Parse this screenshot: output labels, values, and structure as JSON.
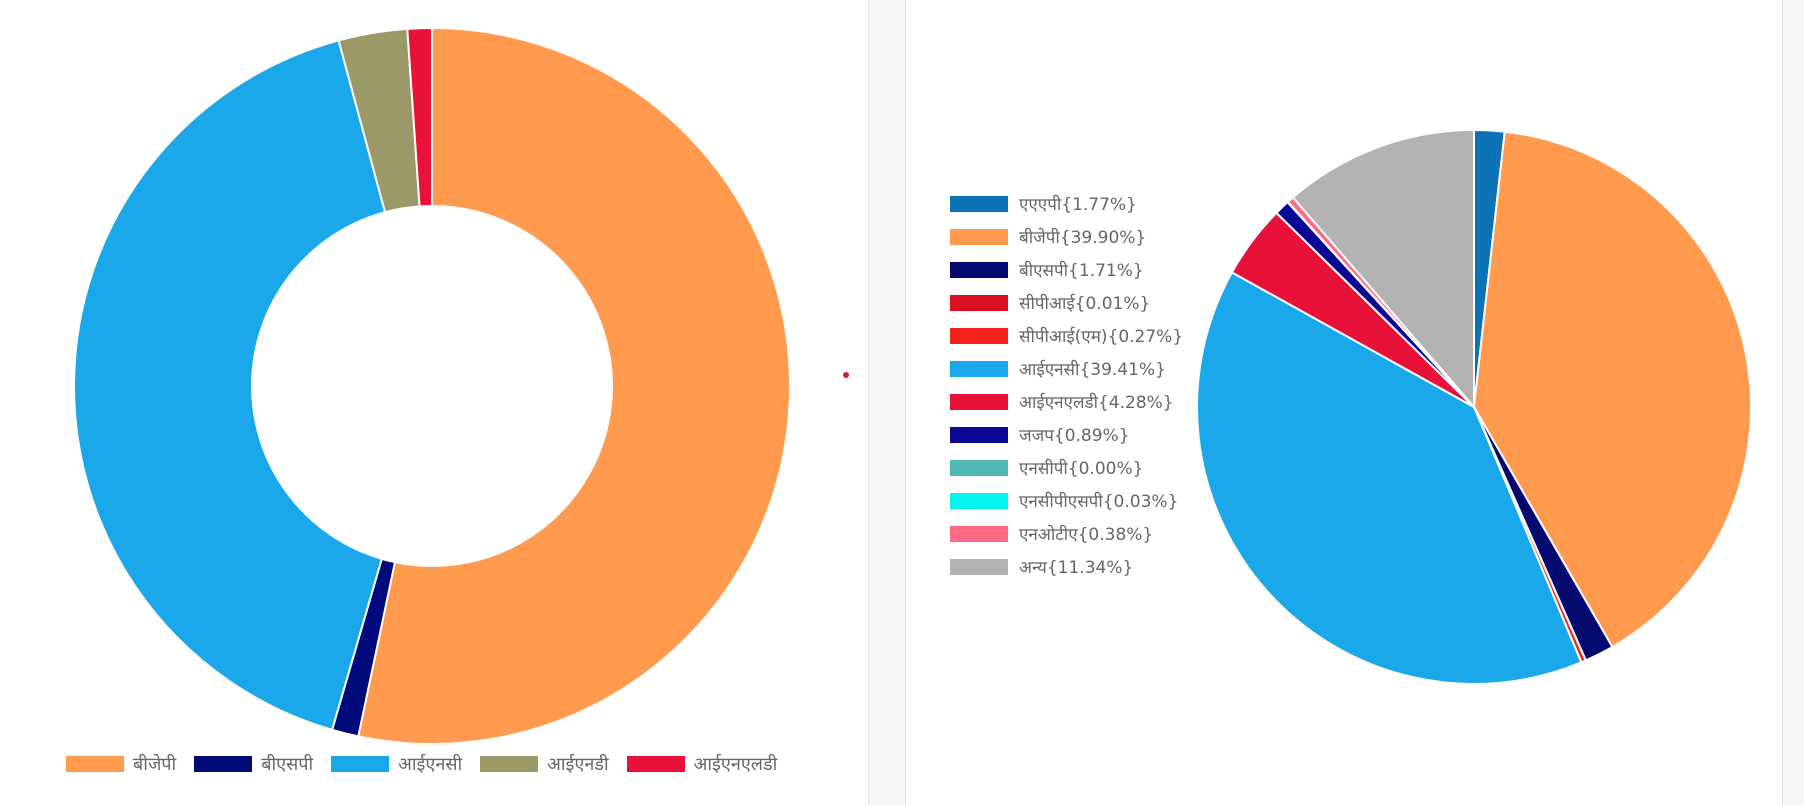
{
  "chart_data": [
    {
      "type": "pie",
      "categories": [
        "बीजेपी",
        "बीएसपी",
        "आईएनसी",
        "आईएनडी",
        "आईएनएलडी"
      ],
      "values": [
        53.3,
        1.2,
        41.3,
        3.1,
        1.1
      ],
      "colors": [
        "#ff9a4f",
        "#000a7a",
        "#1ba8ea",
        "#9b9968",
        "#e8113a"
      ],
      "legend": "bottom",
      "title": ""
    },
    {
      "type": "pie",
      "categories": [
        "एएएपी{1.77%}",
        "बीजेपी{39.90%}",
        "बीएसपी{1.71%}",
        "सीपीआई{0.01%}",
        "सीपीआई(एम){0.27%}",
        "आईएनसी{39.41%}",
        "आईएनएलडी{4.28%}",
        "जजप{0.89%}",
        "एनसीपी{0.00%}",
        "एनसीपीएसपी{0.03%}",
        "एनओटीए{0.38%}",
        "अन्य{11.34%}"
      ],
      "values": [
        1.77,
        39.9,
        1.71,
        0.01,
        0.27,
        39.41,
        4.28,
        0.89,
        0.0,
        0.03,
        0.38,
        11.34
      ],
      "colors": [
        "#0a72b5",
        "#ff9a4f",
        "#050a6e",
        "#d8101f",
        "#f4231b",
        "#1ba8ea",
        "#e8113a",
        "#0a0894",
        "#4fb8b5",
        "#00f5f0",
        "#ff6b86",
        "#b3b3b3"
      ],
      "legend": "left",
      "title": ""
    }
  ]
}
